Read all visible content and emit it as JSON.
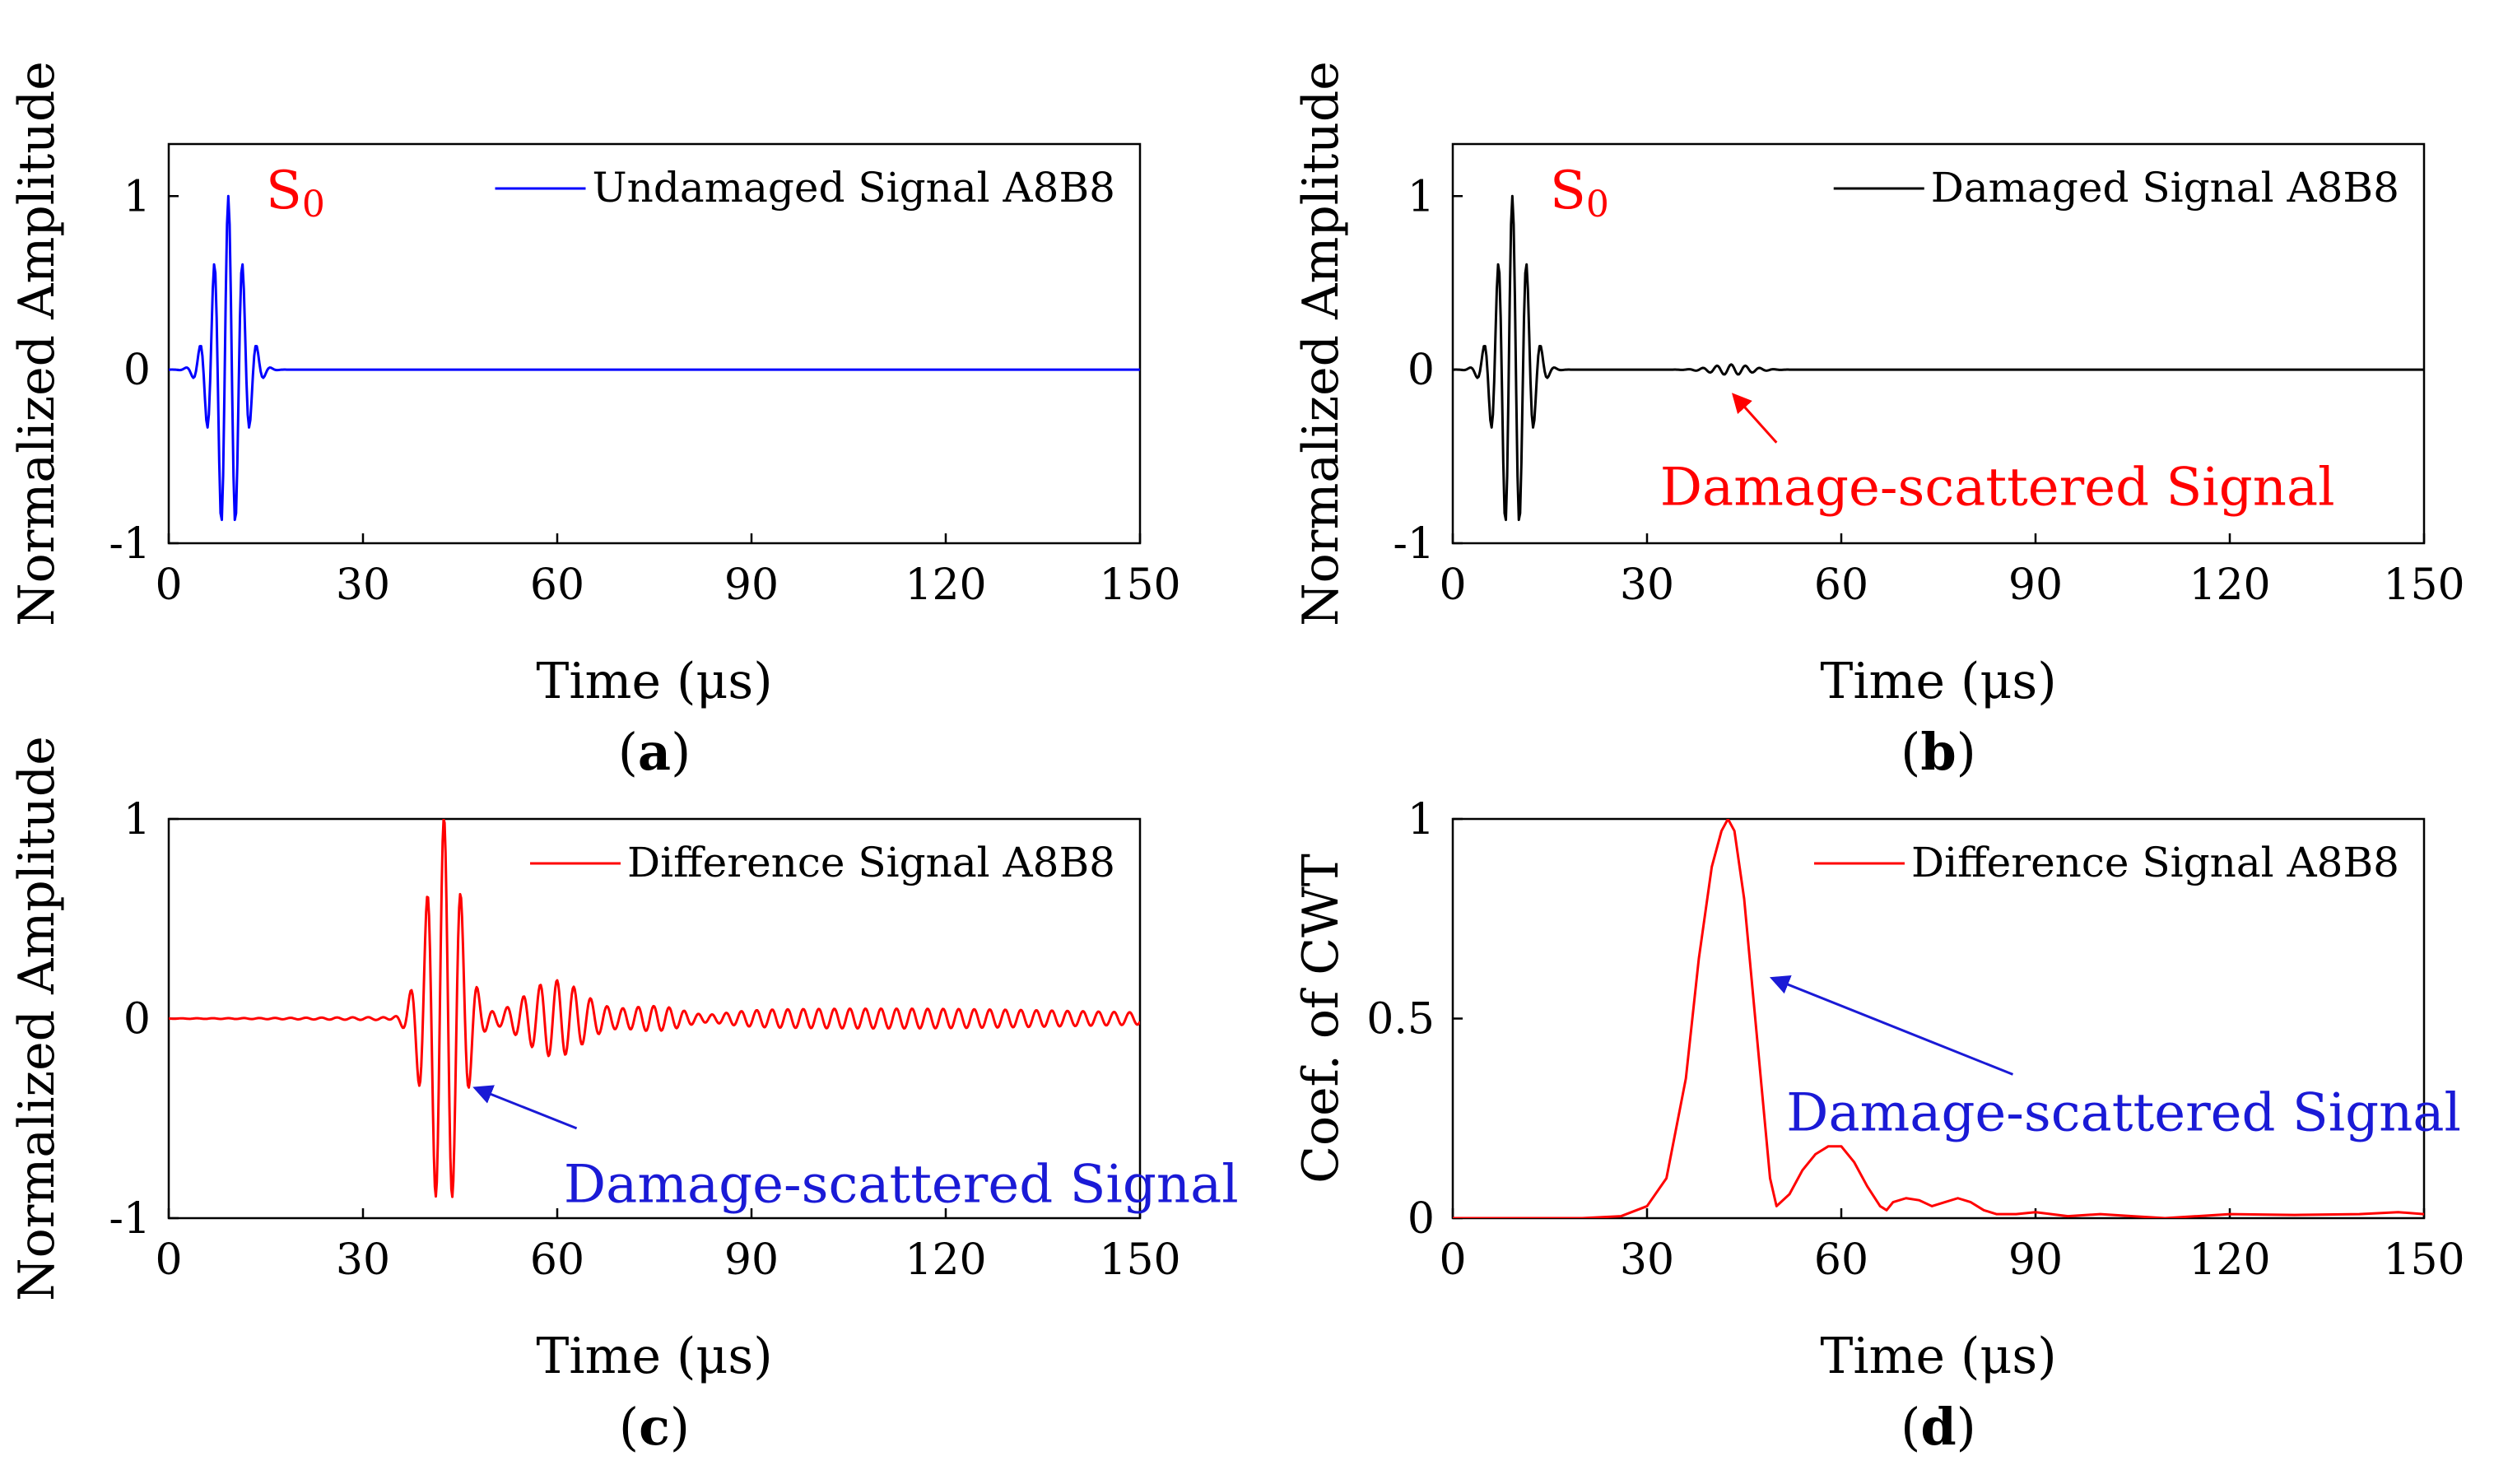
{
  "figure": {
    "colors": {
      "undamaged": "#0000ff",
      "damaged": "#000000",
      "difference": "#ff0000",
      "annotation_red": "#ff0000",
      "annotation_blue": "#1a1ad6"
    }
  },
  "chart_data": [
    {
      "panel": "a",
      "type": "line",
      "panel_label_open": "(",
      "panel_label_letter": "a",
      "panel_label_close": ")",
      "xlabel": "Time (μs)",
      "ylabel": "Normalized Amplitude",
      "xlim": [
        0,
        150
      ],
      "ylim": [
        -1,
        1.3
      ],
      "xticks": [
        0,
        30,
        60,
        90,
        120,
        150
      ],
      "yticks": [
        -1,
        0,
        1
      ],
      "ytick_labels": [
        "-1",
        "0",
        "1"
      ],
      "legend": "Undamaged Signal A8B8",
      "legend_position": "top-right",
      "series": [
        {
          "name": "Undamaged Signal A8B8",
          "color": "#0000ff",
          "kind": "wave",
          "x_start": 0,
          "x_end": 150,
          "step": 0.2,
          "components": [
            {
              "amp": 1.0,
              "center": 9.2,
              "sigma": 2.2,
              "period": 2.2
            }
          ]
        }
      ],
      "annotations": [
        {
          "kind": "mode",
          "text": "S",
          "sub": "0",
          "x": 15,
          "y": 0.93,
          "color": "#ff0000"
        }
      ]
    },
    {
      "panel": "b",
      "type": "line",
      "panel_label_open": "(",
      "panel_label_letter": "b",
      "panel_label_close": ")",
      "xlabel": "Time (μs)",
      "ylabel": "Normalized Amplitude",
      "xlim": [
        0,
        150
      ],
      "ylim": [
        -1,
        1.3
      ],
      "xticks": [
        0,
        30,
        60,
        90,
        120,
        150
      ],
      "yticks": [
        -1,
        0,
        1
      ],
      "ytick_labels": [
        "-1",
        "0",
        "1"
      ],
      "legend": "Damaged Signal A8B8",
      "legend_position": "top-right",
      "series": [
        {
          "name": "Damaged Signal A8B8",
          "color": "#000000",
          "kind": "wave",
          "x_start": 0,
          "x_end": 150,
          "step": 0.2,
          "components": [
            {
              "amp": 1.0,
              "center": 9.2,
              "sigma": 2.2,
              "period": 2.2
            },
            {
              "amp": 0.03,
              "center": 43,
              "sigma": 3,
              "period": 2.2
            }
          ]
        }
      ],
      "annotations": [
        {
          "kind": "mode",
          "text": "S",
          "sub": "0",
          "x": 15,
          "y": 0.93,
          "color": "#ff0000"
        },
        {
          "kind": "arrow",
          "text": "Damage-scattered Signal",
          "color": "#ff0000",
          "text_x": 32,
          "text_y": -0.78,
          "tail": [
            50,
            -0.42
          ],
          "head": [
            43.5,
            -0.15
          ]
        }
      ]
    },
    {
      "panel": "c",
      "type": "line",
      "panel_label_open": "(",
      "panel_label_letter": "c",
      "panel_label_close": ")",
      "xlabel": "Time (μs)",
      "ylabel": "Normalized Amplitude",
      "xlim": [
        0,
        150
      ],
      "ylim": [
        -1,
        1
      ],
      "xticks": [
        0,
        30,
        60,
        90,
        120,
        150
      ],
      "yticks": [
        -1,
        0,
        1
      ],
      "ytick_labels": [
        "-1",
        "0",
        "1"
      ],
      "legend": "Difference Signal A8B8",
      "legend_position": "top-right",
      "series": [
        {
          "name": "Difference Signal A8B8",
          "color": "#ff0000",
          "kind": "wave",
          "x_start": 0,
          "x_end": 150,
          "step": 0.15,
          "components": [
            {
              "amp": 1.0,
              "center": 42.5,
              "sigma": 2.6,
              "period": 2.6
            },
            {
              "amp": 0.18,
              "center": 60,
              "sigma": 4.5,
              "period": 2.6
            },
            {
              "amp": 0.09,
              "center": 75,
              "sigma": 6,
              "period": 2.4
            },
            {
              "amp": 0.05,
              "center": 110,
              "sigma": 40,
              "period": 2.4
            }
          ]
        }
      ],
      "annotations": [
        {
          "kind": "arrow",
          "text": "Damage-scattered Signal",
          "color": "#1a1ad6",
          "text_x": 61,
          "text_y": -0.92,
          "tail": [
            63,
            -0.55
          ],
          "head": [
            47.5,
            -0.35
          ]
        }
      ]
    },
    {
      "panel": "d",
      "type": "line",
      "panel_label_open": "(",
      "panel_label_letter": "d",
      "panel_label_close": ")",
      "xlabel": "Time (μs)",
      "ylabel": "Coef. of CWT",
      "xlim": [
        0,
        150
      ],
      "ylim": [
        0,
        1
      ],
      "xticks": [
        0,
        30,
        60,
        90,
        120,
        150
      ],
      "yticks": [
        0,
        0.5,
        1
      ],
      "ytick_labels": [
        "0",
        "0.5",
        "1"
      ],
      "legend": "Difference Signal A8B8",
      "legend_position": "top-right",
      "series": [
        {
          "name": "Difference Signal A8B8",
          "color": "#ff0000",
          "kind": "points",
          "x": [
            0,
            10,
            20,
            26,
            30,
            33,
            36,
            38,
            40,
            41.5,
            42.5,
            43.5,
            45,
            47,
            49,
            50,
            52,
            54,
            56,
            58,
            60,
            62,
            64,
            66,
            67,
            68,
            70,
            72,
            74,
            76,
            78,
            80,
            82,
            84,
            87,
            90,
            95,
            100,
            105,
            110,
            115,
            120,
            130,
            140,
            146,
            150
          ],
          "y": [
            0,
            0,
            0,
            0.005,
            0.03,
            0.1,
            0.35,
            0.65,
            0.88,
            0.97,
            1.0,
            0.97,
            0.8,
            0.45,
            0.1,
            0.03,
            0.06,
            0.12,
            0.16,
            0.18,
            0.18,
            0.14,
            0.08,
            0.03,
            0.02,
            0.04,
            0.05,
            0.045,
            0.03,
            0.04,
            0.05,
            0.04,
            0.02,
            0.01,
            0.01,
            0.015,
            0.005,
            0.01,
            0.005,
            0.0,
            0.005,
            0.01,
            0.008,
            0.01,
            0.015,
            0.01
          ]
        }
      ],
      "annotations": [
        {
          "kind": "arrow",
          "text": "Damage-scattered Signal",
          "color": "#1a1ad6",
          "text_x": 51.5,
          "text_y": 0.22,
          "tail": [
            86.5,
            0.36
          ],
          "head": [
            49.5,
            0.6
          ]
        }
      ]
    }
  ]
}
